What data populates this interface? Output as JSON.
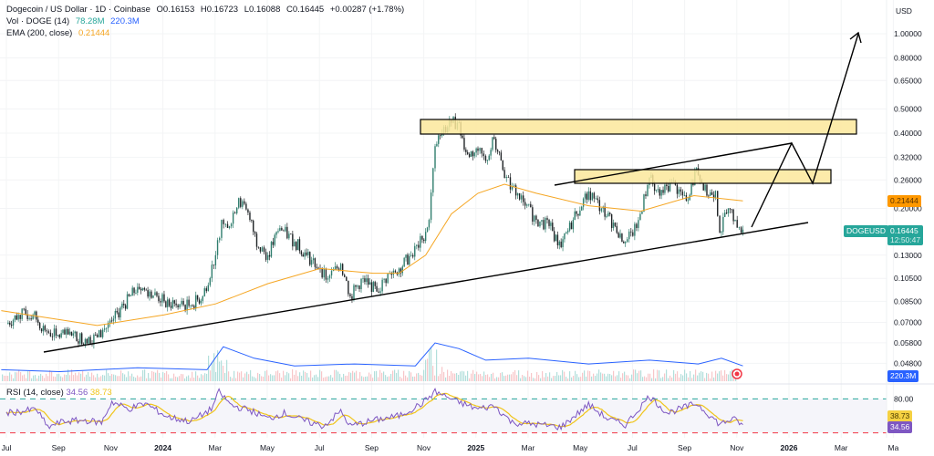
{
  "header": {
    "symbol_title": "Dogecoin / US Dollar · 1D · Coinbase",
    "open": "O0.16153",
    "high": "H0.16723",
    "low": "L0.16088",
    "close": "C0.16445",
    "change": "+0.00287 (+1.78%)",
    "vol_label": "Vol · DOGE (14)",
    "vol_value1": "78.28M",
    "vol_value2": "220.3M",
    "ema_label": "EMA (200, close)",
    "ema_value": "0.21444"
  },
  "price_axis": {
    "currency": "USD",
    "ticks": [
      "1.00000",
      "0.80000",
      "0.65000",
      "0.50000",
      "0.40000",
      "0.32000",
      "0.26000",
      "0.20000",
      "0.13000",
      "0.10500",
      "0.08500",
      "0.07000",
      "0.05800",
      "0.04800"
    ],
    "ema_tag": "0.21444",
    "symbol_tag": "DOGEUSD",
    "last_price_tag": "0.16445",
    "countdown": "12:50:47",
    "volume_tag": "220.3M"
  },
  "rsi": {
    "label": "RSI (14, close)",
    "value": "34.56",
    "ma_value": "38.73",
    "tick": "80.00"
  },
  "time_axis": [
    "Jul",
    "Sep",
    "Nov",
    "2024",
    "Mar",
    "May",
    "Jul",
    "Sep",
    "Nov",
    "2025",
    "Mar",
    "May",
    "Jul",
    "Sep",
    "Nov",
    "2026",
    "Mar",
    "Ma"
  ],
  "colors": {
    "up": "#2f7d6d",
    "down": "#1f2326",
    "ema": "#f5a623",
    "volume_ma": "#2962ff",
    "rsi": "#7e57c2",
    "rsi_ma": "#f0c419",
    "zone": "#fbe79b",
    "tag_green": "#26a69a",
    "tag_orange": "#ff9800",
    "upper_band": "#26a69a",
    "lower_band": "#f23645"
  },
  "chart_data": {
    "type": "candlestick",
    "scale": "log",
    "ylim": [
      0.045,
      1.1
    ],
    "xlim": [
      "2023-06-25",
      "2026-05-05"
    ],
    "grid": true,
    "close_series": [
      [
        "2023-07-01",
        0.069
      ],
      [
        "2023-07-15",
        0.075
      ],
      [
        "2023-08-01",
        0.075
      ],
      [
        "2023-08-15",
        0.065
      ],
      [
        "2023-08-28",
        0.062
      ],
      [
        "2023-09-15",
        0.062
      ],
      [
        "2023-10-01",
        0.06
      ],
      [
        "2023-10-15",
        0.061
      ],
      [
        "2023-11-01",
        0.071
      ],
      [
        "2023-11-15",
        0.082
      ],
      [
        "2023-12-01",
        0.097
      ],
      [
        "2023-12-15",
        0.093
      ],
      [
        "2024-01-01",
        0.085
      ],
      [
        "2024-01-15",
        0.082
      ],
      [
        "2024-02-01",
        0.082
      ],
      [
        "2024-02-15",
        0.089
      ],
      [
        "2024-03-01",
        0.13
      ],
      [
        "2024-03-08",
        0.18
      ],
      [
        "2024-03-15",
        0.167
      ],
      [
        "2024-03-28",
        0.22
      ],
      [
        "2024-04-10",
        0.18
      ],
      [
        "2024-04-20",
        0.14
      ],
      [
        "2024-05-01",
        0.13
      ],
      [
        "2024-05-15",
        0.167
      ],
      [
        "2024-06-01",
        0.147
      ],
      [
        "2024-06-15",
        0.13
      ],
      [
        "2024-07-01",
        0.115
      ],
      [
        "2024-07-10",
        0.105
      ],
      [
        "2024-07-25",
        0.12
      ],
      [
        "2024-08-05",
        0.089
      ],
      [
        "2024-08-20",
        0.105
      ],
      [
        "2024-09-05",
        0.093
      ],
      [
        "2024-09-20",
        0.11
      ],
      [
        "2024-10-01",
        0.115
      ],
      [
        "2024-10-15",
        0.13
      ],
      [
        "2024-10-28",
        0.15
      ],
      [
        "2024-11-05",
        0.18
      ],
      [
        "2024-11-12",
        0.355
      ],
      [
        "2024-11-20",
        0.4
      ],
      [
        "2024-12-01",
        0.44
      ],
      [
        "2024-12-08",
        0.44
      ],
      [
        "2024-12-20",
        0.33
      ],
      [
        "2025-01-01",
        0.34
      ],
      [
        "2025-01-10",
        0.31
      ],
      [
        "2025-01-20",
        0.38
      ],
      [
        "2025-02-01",
        0.265
      ],
      [
        "2025-02-10",
        0.245
      ],
      [
        "2025-02-25",
        0.205
      ],
      [
        "2025-03-10",
        0.18
      ],
      [
        "2025-03-25",
        0.17
      ],
      [
        "2025-04-08",
        0.14
      ],
      [
        "2025-04-22",
        0.18
      ],
      [
        "2025-05-10",
        0.234
      ],
      [
        "2025-05-25",
        0.2
      ],
      [
        "2025-06-10",
        0.17
      ],
      [
        "2025-06-22",
        0.147
      ],
      [
        "2025-07-05",
        0.167
      ],
      [
        "2025-07-20",
        0.265
      ],
      [
        "2025-08-01",
        0.225
      ],
      [
        "2025-08-15",
        0.255
      ],
      [
        "2025-09-01",
        0.215
      ],
      [
        "2025-09-13",
        0.29
      ],
      [
        "2025-09-25",
        0.225
      ],
      [
        "2025-10-05",
        0.235
      ],
      [
        "2025-10-10",
        0.16
      ],
      [
        "2025-10-20",
        0.2
      ],
      [
        "2025-10-28",
        0.18
      ],
      [
        "2025-11-04",
        0.16
      ],
      [
        "2025-11-06",
        0.16445
      ]
    ],
    "ema200": [
      [
        "2023-06-25",
        0.078
      ],
      [
        "2023-10-15",
        0.068
      ],
      [
        "2024-01-01",
        0.075
      ],
      [
        "2024-03-01",
        0.083
      ],
      [
        "2024-05-01",
        0.1
      ],
      [
        "2024-07-01",
        0.115
      ],
      [
        "2024-09-01",
        0.11
      ],
      [
        "2024-10-01",
        0.11
      ],
      [
        "2024-11-01",
        0.13
      ],
      [
        "2024-12-01",
        0.19
      ],
      [
        "2025-01-01",
        0.23
      ],
      [
        "2025-02-01",
        0.25
      ],
      [
        "2025-03-10",
        0.23
      ],
      [
        "2025-05-10",
        0.205
      ],
      [
        "2025-07-10",
        0.195
      ],
      [
        "2025-09-10",
        0.225
      ],
      [
        "2025-11-06",
        0.21444
      ]
    ],
    "volume_ma": [
      [
        "2023-06-25",
        0.3
      ],
      [
        "2023-09-01",
        0.25
      ],
      [
        "2023-12-01",
        0.35
      ],
      [
        "2024-02-20",
        0.3
      ],
      [
        "2024-03-10",
        0.9
      ],
      [
        "2024-04-15",
        0.6
      ],
      [
        "2024-06-01",
        0.4
      ],
      [
        "2024-08-10",
        0.45
      ],
      [
        "2024-10-20",
        0.4
      ],
      [
        "2024-11-12",
        1.0
      ],
      [
        "2024-12-10",
        0.85
      ],
      [
        "2025-01-10",
        0.55
      ],
      [
        "2025-03-01",
        0.6
      ],
      [
        "2025-05-10",
        0.45
      ],
      [
        "2025-07-20",
        0.55
      ],
      [
        "2025-09-15",
        0.45
      ],
      [
        "2025-10-12",
        0.6
      ],
      [
        "2025-11-06",
        0.4
      ]
    ],
    "rsi_series": [
      [
        "2023-07-01",
        55
      ],
      [
        "2023-07-20",
        58
      ],
      [
        "2023-08-05",
        62
      ],
      [
        "2023-08-18",
        30
      ],
      [
        "2023-09-05",
        40
      ],
      [
        "2023-10-01",
        42
      ],
      [
        "2023-10-20",
        38
      ],
      [
        "2023-11-01",
        75
      ],
      [
        "2023-11-20",
        62
      ],
      [
        "2023-12-10",
        72
      ],
      [
        "2024-01-05",
        48
      ],
      [
        "2024-02-01",
        40
      ],
      [
        "2024-02-25",
        62
      ],
      [
        "2024-03-05",
        92
      ],
      [
        "2024-03-20",
        68
      ],
      [
        "2024-04-10",
        60
      ],
      [
        "2024-05-01",
        45
      ],
      [
        "2024-05-20",
        55
      ],
      [
        "2024-06-15",
        40
      ],
      [
        "2024-07-05",
        32
      ],
      [
        "2024-07-25",
        58
      ],
      [
        "2024-08-05",
        32
      ],
      [
        "2024-09-01",
        42
      ],
      [
        "2024-10-01",
        50
      ],
      [
        "2024-10-28",
        72
      ],
      [
        "2024-11-12",
        93
      ],
      [
        "2024-12-08",
        75
      ],
      [
        "2025-01-01",
        62
      ],
      [
        "2025-01-20",
        68
      ],
      [
        "2025-02-10",
        38
      ],
      [
        "2025-03-10",
        35
      ],
      [
        "2025-04-08",
        30
      ],
      [
        "2025-05-10",
        70
      ],
      [
        "2025-06-01",
        45
      ],
      [
        "2025-06-22",
        34
      ],
      [
        "2025-07-20",
        85
      ],
      [
        "2025-08-10",
        55
      ],
      [
        "2025-09-13",
        72
      ],
      [
        "2025-10-10",
        35
      ],
      [
        "2025-10-25",
        45
      ],
      [
        "2025-11-06",
        34.56
      ]
    ],
    "rsi_bands": [
      80,
      20
    ]
  }
}
